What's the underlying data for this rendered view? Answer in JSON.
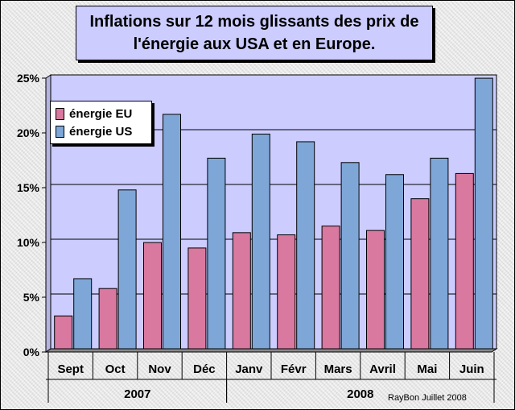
{
  "title": "Inflations sur 12 mois glissants des prix de l'énergie aux USA et en Europe.",
  "credit": "RayBon Juillet 2008",
  "chart_data": {
    "type": "bar",
    "title": "Inflations sur 12 mois glissants des prix de l'énergie aux USA et en Europe.",
    "categories": [
      "Sept",
      "Oct",
      "Nov",
      "Déc",
      "Janv",
      "Févr",
      "Mars",
      "Avril",
      "Mai",
      "Juin"
    ],
    "groups": [
      {
        "label": "2007",
        "from": 0,
        "to": 3
      },
      {
        "label": "2008",
        "from": 4,
        "to": 9
      }
    ],
    "series": [
      {
        "name": "énergie EU",
        "color": "#d9799f",
        "values": [
          3.0,
          5.5,
          9.7,
          9.2,
          10.6,
          10.4,
          11.2,
          10.8,
          13.7,
          16.0
        ]
      },
      {
        "name": "énergie US",
        "color": "#7ea7d8",
        "values": [
          6.4,
          14.5,
          21.4,
          17.4,
          19.6,
          18.9,
          17.0,
          15.9,
          17.4,
          24.7
        ]
      }
    ],
    "ylim": [
      0,
      25
    ],
    "yticks": [
      0,
      5,
      10,
      15,
      20,
      25
    ],
    "ytick_labels": [
      "0%",
      "5%",
      "10%",
      "15%",
      "20%",
      "25%"
    ],
    "xlabel": "",
    "ylabel": "",
    "grid": true,
    "legend_position": "top-left"
  }
}
